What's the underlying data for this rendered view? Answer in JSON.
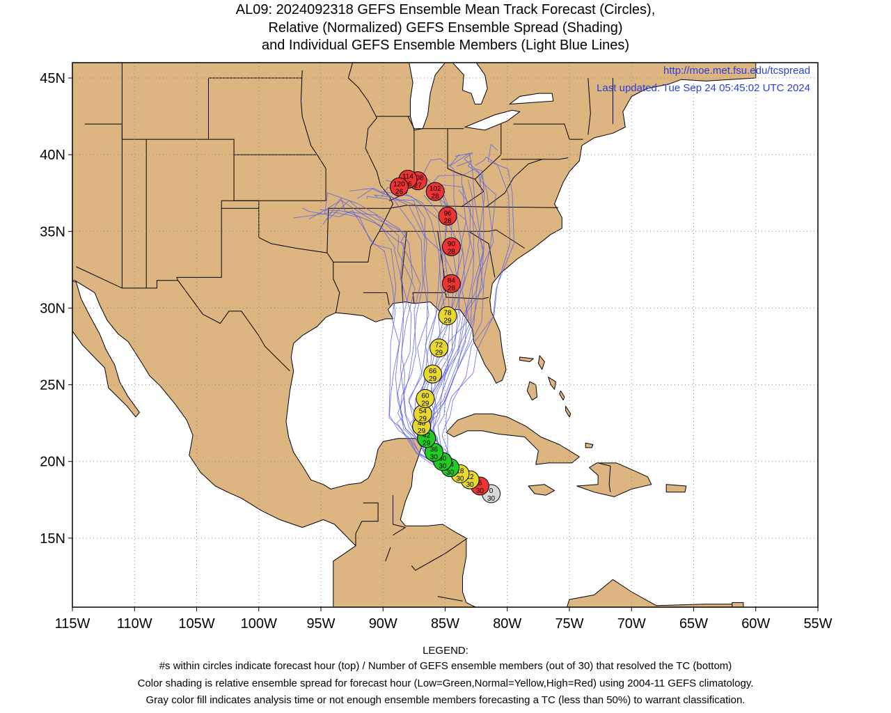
{
  "title": {
    "line1": "AL09: 2024092318 GEFS Ensemble Mean Track Forecast (Circles),",
    "line2": "Relative (Normalized) GEFS Ensemble Spread (Shading)",
    "line3": "and Individual GEFS Ensemble Members (Light Blue Lines)"
  },
  "credit": {
    "url": "http://moe.met.fsu.edu/tcspread",
    "updated": "Last updated: Tue Sep 24 05:45:02 UTC 2024"
  },
  "axes": {
    "lat_labels": [
      "15N",
      "20N",
      "25N",
      "30N",
      "35N",
      "40N",
      "45N"
    ],
    "lon_labels": [
      "115W",
      "110W",
      "105W",
      "100W",
      "95W",
      "90W",
      "85W",
      "80W",
      "75W",
      "70W",
      "65W",
      "60W",
      "55W"
    ],
    "lon_range": [
      -115,
      -55
    ],
    "lat_range": [
      10.5,
      46
    ]
  },
  "colors": {
    "land": "#dcb581",
    "ocean": "#ffffff",
    "member_tracks": "#5a63e8",
    "low_spread": "#22cc22",
    "normal_spread": "#e8d830",
    "high_spread": "#ee3333",
    "gray": "#d8d8d8"
  },
  "track_points": [
    {
      "hour": "0",
      "members": "30",
      "lon": -81.3,
      "lat": 17.9,
      "spread": "gray"
    },
    {
      "hour": "6",
      "members": "30",
      "lon": -82.2,
      "lat": 18.4,
      "spread": "high"
    },
    {
      "hour": "12",
      "members": "30",
      "lon": -83.0,
      "lat": 18.8,
      "spread": "normal"
    },
    {
      "hour": "18",
      "members": "30",
      "lon": -83.8,
      "lat": 19.2,
      "spread": "normal"
    },
    {
      "hour": "24",
      "members": "30",
      "lon": -84.6,
      "lat": 19.6,
      "spread": "low"
    },
    {
      "hour": "30",
      "members": "30",
      "lon": -85.2,
      "lat": 20.0,
      "spread": "low"
    },
    {
      "hour": "36",
      "members": "30",
      "lon": -85.9,
      "lat": 20.6,
      "spread": "low"
    },
    {
      "hour": "42",
      "members": "29",
      "lon": -86.5,
      "lat": 21.5,
      "spread": "low"
    },
    {
      "hour": "48",
      "members": "29",
      "lon": -86.9,
      "lat": 22.3,
      "spread": "normal"
    },
    {
      "hour": "54",
      "members": "29",
      "lon": -86.8,
      "lat": 23.1,
      "spread": "normal"
    },
    {
      "hour": "60",
      "members": "29",
      "lon": -86.6,
      "lat": 24.1,
      "spread": "normal"
    },
    {
      "hour": "66",
      "members": "29",
      "lon": -86.0,
      "lat": 25.7,
      "spread": "normal"
    },
    {
      "hour": "72",
      "members": "29",
      "lon": -85.5,
      "lat": 27.4,
      "spread": "normal"
    },
    {
      "hour": "78",
      "members": "29",
      "lon": -84.8,
      "lat": 29.5,
      "spread": "normal"
    },
    {
      "hour": "84",
      "members": "28",
      "lon": -84.5,
      "lat": 31.6,
      "spread": "high"
    },
    {
      "hour": "90",
      "members": "28",
      "lon": -84.5,
      "lat": 34.0,
      "spread": "high"
    },
    {
      "hour": "96",
      "members": "28",
      "lon": -84.8,
      "lat": 36.0,
      "spread": "high"
    },
    {
      "hour": "102",
      "members": "28",
      "lon": -85.8,
      "lat": 37.6,
      "spread": "high"
    },
    {
      "hour": "108",
      "members": "27",
      "lon": -87.2,
      "lat": 38.3,
      "spread": "high"
    },
    {
      "hour": "114",
      "members": "26",
      "lon": -88.0,
      "lat": 38.4,
      "spread": "high"
    },
    {
      "hour": "120",
      "members": "26",
      "lon": -88.7,
      "lat": 37.9,
      "spread": "high"
    }
  ],
  "legend": {
    "heading": "LEGEND:",
    "line1": "#s within circles indicate forecast hour (top) / Number of GEFS ensemble members (out of 30) that resolved the TC (bottom)",
    "line2": "Color shading is relative ensemble spread for forecast hour (Low=Green,Normal=Yellow,High=Red) using 2004-11 GEFS climatology.",
    "line3": "Gray color fill indicates analysis time or not enough ensemble members forecasting a TC (less than 50%) to warrant classification."
  }
}
